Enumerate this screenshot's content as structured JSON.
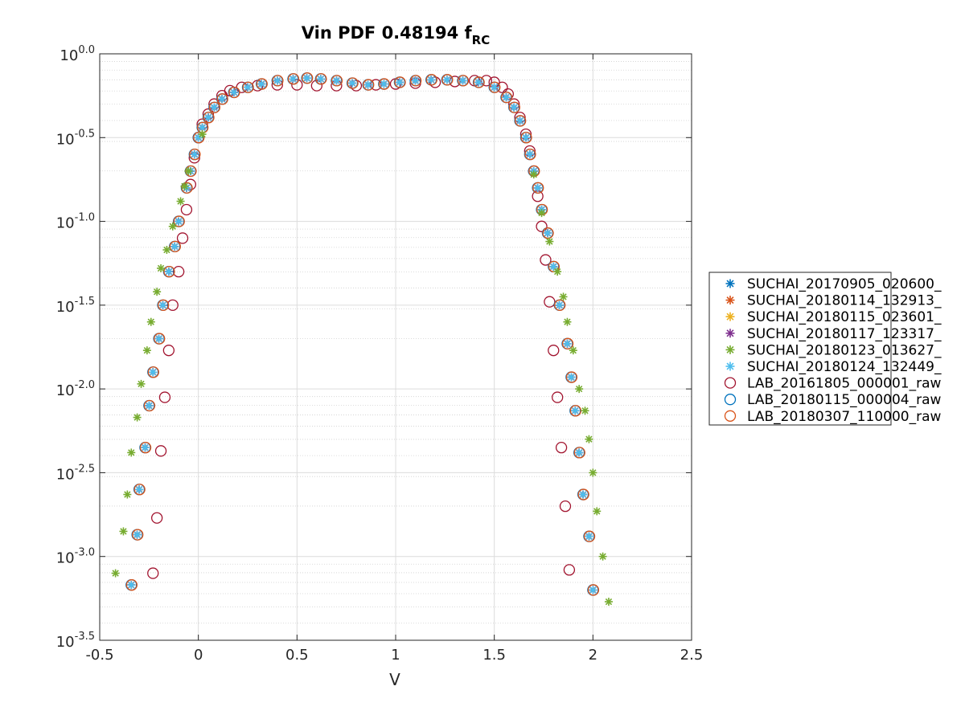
{
  "chart_data": {
    "type": "scatter",
    "title": "Vin PDF 0.48194 f",
    "title_subscript": "RC",
    "xlabel": "V",
    "ylabel": "",
    "xlim": [
      -0.5,
      2.5
    ],
    "ylim_log10": [
      -3.5,
      0
    ],
    "y_scale": "log",
    "grid": true,
    "minor_grid_y": true,
    "legend_placement": "outside-right",
    "x_ticks": [
      -0.5,
      0,
      0.5,
      1,
      1.5,
      2,
      2.5
    ],
    "x_tick_labels": [
      "-0.5",
      "0",
      "0.5",
      "1",
      "1.5",
      "2",
      "2.5"
    ],
    "y_ticks": [
      {
        "exp": 0,
        "base": "10",
        "sup": "0.0"
      },
      {
        "exp": -0.5,
        "base": "10",
        "sup": "-0.5"
      },
      {
        "exp": -1,
        "base": "10",
        "sup": "-1.0"
      },
      {
        "exp": -1.5,
        "base": "10",
        "sup": "-1.5"
      },
      {
        "exp": -2,
        "base": "10",
        "sup": "-2.0"
      },
      {
        "exp": -2.5,
        "base": "10",
        "sup": "-2.5"
      },
      {
        "exp": -3,
        "base": "10",
        "sup": "-3.0"
      },
      {
        "exp": -3.5,
        "base": "10",
        "sup": "-3.5"
      }
    ],
    "series": [
      {
        "name": "SUCHAI_20170905_020600_",
        "marker": "asterisk",
        "color": "#0072BD"
      },
      {
        "name": "SUCHAI_20180114_132913_",
        "marker": "asterisk",
        "color": "#D95319"
      },
      {
        "name": "SUCHAI_20180115_023601_",
        "marker": "asterisk",
        "color": "#EDB120"
      },
      {
        "name": "SUCHAI_20180117_123317_",
        "marker": "asterisk",
        "color": "#7E2F8E"
      },
      {
        "name": "SUCHAI_20180123_013627_",
        "marker": "asterisk",
        "color": "#77AC30"
      },
      {
        "name": "SUCHAI_20180124_132449_",
        "marker": "asterisk",
        "color": "#4DBEEE"
      },
      {
        "name": "LAB_20161805_000001_raw",
        "marker": "circle",
        "color": "#A2142F"
      },
      {
        "name": "LAB_20180115_000004_raw",
        "marker": "circle",
        "color": "#0072BD"
      },
      {
        "name": "LAB_20180307_110000_raw",
        "marker": "circle",
        "color": "#D95319"
      }
    ],
    "curves": {
      "suchai_main": [
        [
          -0.34,
          -3.17
        ],
        [
          -0.31,
          -2.87
        ],
        [
          -0.3,
          -2.6
        ],
        [
          -0.27,
          -2.35
        ],
        [
          -0.25,
          -2.1
        ],
        [
          -0.23,
          -1.9
        ],
        [
          -0.2,
          -1.7
        ],
        [
          -0.18,
          -1.5
        ],
        [
          -0.15,
          -1.3
        ],
        [
          -0.12,
          -1.15
        ],
        [
          -0.1,
          -1.0
        ],
        [
          -0.06,
          -0.8
        ],
        [
          -0.04,
          -0.7
        ],
        [
          -0.02,
          -0.6
        ],
        [
          0.0,
          -0.5
        ],
        [
          0.02,
          -0.44
        ],
        [
          0.05,
          -0.38
        ],
        [
          0.08,
          -0.32
        ],
        [
          0.12,
          -0.27
        ],
        [
          0.18,
          -0.23
        ],
        [
          0.25,
          -0.2
        ],
        [
          0.32,
          -0.18
        ],
        [
          0.4,
          -0.16
        ],
        [
          0.48,
          -0.15
        ],
        [
          0.55,
          -0.145
        ],
        [
          0.62,
          -0.15
        ],
        [
          0.7,
          -0.16
        ],
        [
          0.78,
          -0.175
        ],
        [
          0.86,
          -0.185
        ],
        [
          0.94,
          -0.18
        ],
        [
          1.02,
          -0.17
        ],
        [
          1.1,
          -0.16
        ],
        [
          1.18,
          -0.155
        ],
        [
          1.26,
          -0.155
        ],
        [
          1.34,
          -0.16
        ],
        [
          1.42,
          -0.17
        ],
        [
          1.5,
          -0.2
        ],
        [
          1.56,
          -0.26
        ],
        [
          1.6,
          -0.32
        ],
        [
          1.63,
          -0.4
        ],
        [
          1.66,
          -0.5
        ],
        [
          1.68,
          -0.6
        ],
        [
          1.7,
          -0.7
        ],
        [
          1.72,
          -0.8
        ],
        [
          1.74,
          -0.93
        ],
        [
          1.77,
          -1.07
        ],
        [
          1.8,
          -1.27
        ],
        [
          1.83,
          -1.5
        ],
        [
          1.87,
          -1.73
        ],
        [
          1.89,
          -1.93
        ],
        [
          1.91,
          -2.13
        ],
        [
          1.93,
          -2.38
        ],
        [
          1.95,
          -2.63
        ],
        [
          1.98,
          -2.88
        ],
        [
          2.0,
          -3.2
        ]
      ],
      "suchai_green": [
        [
          -0.42,
          -3.1
        ],
        [
          -0.38,
          -2.85
        ],
        [
          -0.36,
          -2.63
        ],
        [
          -0.34,
          -2.38
        ],
        [
          -0.31,
          -2.17
        ],
        [
          -0.29,
          -1.97
        ],
        [
          -0.26,
          -1.77
        ],
        [
          -0.24,
          -1.6
        ],
        [
          -0.21,
          -1.42
        ],
        [
          -0.19,
          -1.28
        ],
        [
          -0.16,
          -1.17
        ],
        [
          -0.13,
          -1.03
        ],
        [
          -0.09,
          -0.88
        ],
        [
          -0.07,
          -0.79
        ],
        [
          -0.05,
          -0.7
        ],
        [
          0.02,
          -0.48
        ],
        [
          1.7,
          -0.72
        ],
        [
          1.74,
          -0.95
        ],
        [
          1.78,
          -1.12
        ],
        [
          1.82,
          -1.3
        ],
        [
          1.85,
          -1.45
        ],
        [
          1.87,
          -1.6
        ],
        [
          1.9,
          -1.77
        ],
        [
          1.93,
          -2.0
        ],
        [
          1.96,
          -2.13
        ],
        [
          1.98,
          -2.3
        ],
        [
          2.0,
          -2.5
        ],
        [
          2.02,
          -2.73
        ],
        [
          2.05,
          -3.0
        ],
        [
          2.08,
          -3.27
        ]
      ],
      "lab_red": [
        [
          -0.23,
          -3.1
        ],
        [
          -0.21,
          -2.77
        ],
        [
          -0.19,
          -2.37
        ],
        [
          -0.17,
          -2.05
        ],
        [
          -0.15,
          -1.77
        ],
        [
          -0.13,
          -1.5
        ],
        [
          -0.1,
          -1.3
        ],
        [
          -0.08,
          -1.1
        ],
        [
          -0.06,
          -0.93
        ],
        [
          -0.04,
          -0.78
        ],
        [
          -0.02,
          -0.62
        ],
        [
          0.0,
          -0.5
        ],
        [
          0.02,
          -0.42
        ],
        [
          0.05,
          -0.36
        ],
        [
          0.08,
          -0.3
        ],
        [
          0.12,
          -0.25
        ],
        [
          0.16,
          -0.22
        ],
        [
          0.22,
          -0.2
        ],
        [
          0.3,
          -0.19
        ],
        [
          0.4,
          -0.185
        ],
        [
          0.5,
          -0.185
        ],
        [
          0.6,
          -0.19
        ],
        [
          0.7,
          -0.19
        ],
        [
          0.8,
          -0.19
        ],
        [
          0.9,
          -0.185
        ],
        [
          1.0,
          -0.18
        ],
        [
          1.1,
          -0.175
        ],
        [
          1.2,
          -0.17
        ],
        [
          1.3,
          -0.165
        ],
        [
          1.4,
          -0.16
        ],
        [
          1.46,
          -0.16
        ],
        [
          1.5,
          -0.17
        ],
        [
          1.54,
          -0.2
        ],
        [
          1.57,
          -0.24
        ],
        [
          1.6,
          -0.3
        ],
        [
          1.63,
          -0.38
        ],
        [
          1.66,
          -0.48
        ],
        [
          1.68,
          -0.58
        ],
        [
          1.7,
          -0.7
        ],
        [
          1.72,
          -0.85
        ],
        [
          1.74,
          -1.03
        ],
        [
          1.76,
          -1.23
        ],
        [
          1.78,
          -1.48
        ],
        [
          1.8,
          -1.77
        ],
        [
          1.82,
          -2.05
        ],
        [
          1.84,
          -2.35
        ],
        [
          1.86,
          -2.7
        ],
        [
          1.88,
          -3.08
        ]
      ]
    }
  }
}
